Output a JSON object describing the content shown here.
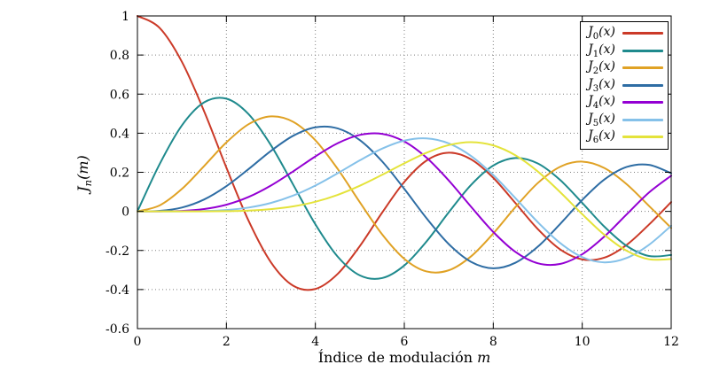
{
  "chart_data": {
    "type": "line",
    "title": "",
    "xlabel": {
      "text": "Índice de modulación",
      "var": "m"
    },
    "ylabel": {
      "base": "J",
      "sub": "n",
      "arg": "(m)"
    },
    "xlim": [
      0,
      12
    ],
    "ylim": [
      -0.6,
      1
    ],
    "xticks": [
      0,
      2,
      4,
      6,
      8,
      10,
      12
    ],
    "yticks": [
      -0.6,
      -0.4,
      -0.2,
      0,
      0.2,
      0.4,
      0.6,
      0.8,
      1
    ],
    "grid": "dotted",
    "legend_position": "top-right",
    "x": [
      0,
      0.5,
      1,
      1.5,
      2,
      2.5,
      3,
      3.5,
      4,
      4.5,
      5,
      5.5,
      6,
      6.5,
      7,
      7.5,
      8,
      8.5,
      9,
      9.5,
      10,
      10.5,
      11,
      11.5,
      12
    ],
    "series": [
      {
        "name": "J0(x)",
        "label_base": "J",
        "label_sub": "0",
        "label_arg": "(x)",
        "color": "#cb3a28",
        "values": [
          1.0,
          0.9385,
          0.7652,
          0.5118,
          0.2239,
          -0.0484,
          -0.2601,
          -0.3801,
          -0.3971,
          -0.3205,
          -0.1776,
          -0.0068,
          0.1506,
          0.2601,
          0.3001,
          0.2663,
          0.1717,
          0.0419,
          -0.0903,
          -0.1939,
          -0.2459,
          -0.2366,
          -0.1712,
          -0.0677,
          0.0477
        ]
      },
      {
        "name": "J1(x)",
        "label_base": "J",
        "label_sub": "1",
        "label_arg": "(x)",
        "color": "#1f8a8d",
        "values": [
          0.0,
          0.2423,
          0.4401,
          0.5579,
          0.5767,
          0.4971,
          0.3391,
          0.1374,
          -0.066,
          -0.2311,
          -0.3276,
          -0.3414,
          -0.2767,
          -0.1538,
          -0.0047,
          0.1352,
          0.2346,
          0.2731,
          0.2453,
          0.1613,
          0.0435,
          -0.0789,
          -0.1768,
          -0.2284,
          -0.2234
        ]
      },
      {
        "name": "J2(x)",
        "label_base": "J",
        "label_sub": "2",
        "label_arg": "(x)",
        "color": "#e0a225",
        "values": [
          0.0,
          0.0306,
          0.1149,
          0.2321,
          0.3528,
          0.4461,
          0.4861,
          0.4586,
          0.3641,
          0.2178,
          0.0466,
          -0.1173,
          -0.2429,
          -0.3074,
          -0.3014,
          -0.2303,
          -0.113,
          0.0223,
          0.1448,
          0.2279,
          0.2546,
          0.2216,
          0.139,
          0.028,
          -0.0849
        ]
      },
      {
        "name": "J3(x)",
        "label_base": "J",
        "label_sub": "3",
        "label_arg": "(x)",
        "color": "#2e6da4",
        "values": [
          0.0,
          0.0026,
          0.0196,
          0.061,
          0.1289,
          0.2166,
          0.3091,
          0.3867,
          0.4302,
          0.4247,
          0.3648,
          0.2561,
          0.1148,
          -0.0353,
          -0.1676,
          -0.2581,
          -0.2911,
          -0.2626,
          -0.1809,
          -0.0653,
          0.0584,
          0.1633,
          0.2273,
          0.2381,
          0.1951
        ]
      },
      {
        "name": "J4(x)",
        "label_base": "J",
        "label_sub": "4",
        "label_arg": "(x)",
        "color": "#9400d3",
        "values": [
          0.0,
          0.0002,
          0.0025,
          0.0118,
          0.034,
          0.0738,
          0.132,
          0.2044,
          0.2811,
          0.3484,
          0.3912,
          0.3967,
          0.3576,
          0.2748,
          0.1578,
          0.0238,
          -0.1054,
          -0.2077,
          -0.2655,
          -0.2691,
          -0.2196,
          -0.1283,
          -0.015,
          0.0962,
          0.1825
        ]
      },
      {
        "name": "J5(x)",
        "label_base": "J",
        "label_sub": "5",
        "label_arg": "(x)",
        "color": "#85c1e9",
        "values": [
          0.0,
          0.0,
          0.0002,
          0.0019,
          0.007,
          0.0195,
          0.043,
          0.0805,
          0.1321,
          0.1947,
          0.2611,
          0.3209,
          0.3621,
          0.3735,
          0.3479,
          0.2835,
          0.1858,
          0.0671,
          -0.055,
          -0.1613,
          -0.2341,
          -0.2611,
          -0.2383,
          -0.1712,
          -0.0735
        ]
      },
      {
        "name": "J6(x)",
        "label_base": "J",
        "label_sub": "6",
        "label_arg": "(x)",
        "color": "#e4e33b",
        "values": [
          0.0,
          0.0,
          0.0,
          0.0002,
          0.0012,
          0.0042,
          0.0114,
          0.0256,
          0.0491,
          0.0843,
          0.131,
          0.1868,
          0.2458,
          0.2999,
          0.3392,
          0.3542,
          0.3376,
          0.2866,
          0.2043,
          0.0993,
          -0.0145,
          -0.1204,
          -0.2016,
          -0.2451,
          -0.2437
        ]
      }
    ]
  }
}
